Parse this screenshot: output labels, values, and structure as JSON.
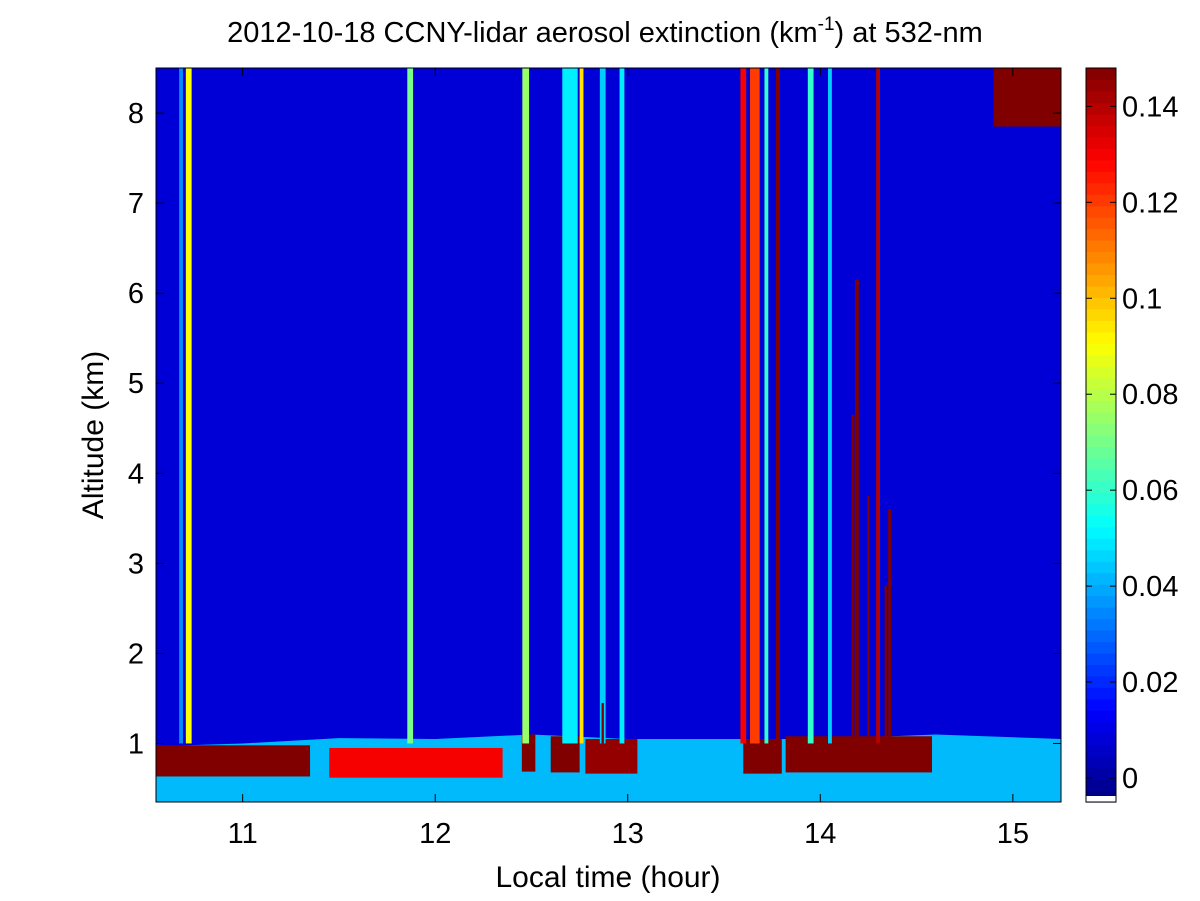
{
  "chart_data": {
    "type": "heatmap",
    "title": {
      "prefix": "2012-10-18 CCNY-lidar aerosol extinction (km",
      "superscript": "-1",
      "suffix": ") at 532-nm"
    },
    "xlabel": "Local time (hour)",
    "ylabel": "Altitude (km)",
    "xlim": [
      10.55,
      15.25
    ],
    "ylim": [
      0.35,
      8.5
    ],
    "x_ticks": [
      11,
      12,
      13,
      14,
      15
    ],
    "y_ticks": [
      1,
      2,
      3,
      4,
      5,
      6,
      7,
      8
    ],
    "colorbar": {
      "colormap": "jet",
      "range": [
        -0.005,
        0.148
      ],
      "ticks": [
        0,
        0.02,
        0.04,
        0.06,
        0.08,
        0.1,
        0.12,
        0.14
      ],
      "tick_labels": [
        "0",
        "0.02",
        "0.04",
        "0.06",
        "0.08",
        "0.1",
        "0.12",
        "0.14"
      ]
    },
    "background_extinction": 0.008,
    "boundary_layer": {
      "top_km_by_time": [
        [
          10.55,
          0.97
        ],
        [
          11.0,
          1.0
        ],
        [
          11.5,
          1.06
        ],
        [
          12.0,
          1.05
        ],
        [
          12.5,
          1.1
        ],
        [
          13.0,
          1.05
        ],
        [
          13.5,
          1.05
        ],
        [
          14.0,
          1.05
        ],
        [
          14.6,
          1.1
        ],
        [
          15.25,
          1.05
        ]
      ],
      "dense_segments": [
        {
          "start": 10.55,
          "end": 11.35,
          "top_km": 0.98,
          "value": 0.148
        },
        {
          "start": 11.45,
          "end": 12.35,
          "top_km": 0.95,
          "value": 0.13
        },
        {
          "start": 12.45,
          "end": 12.52,
          "top_km": 1.1,
          "value": 0.148
        },
        {
          "start": 12.6,
          "end": 12.75,
          "top_km": 1.08,
          "value": 0.148
        },
        {
          "start": 12.78,
          "end": 13.05,
          "top_km": 1.05,
          "value": 0.145
        },
        {
          "start": 13.6,
          "end": 13.8,
          "top_km": 1.05,
          "value": 0.148
        },
        {
          "start": 13.82,
          "end": 14.58,
          "top_km": 1.08,
          "value": 0.148
        }
      ]
    },
    "vertical_features": [
      {
        "time": 10.72,
        "width": 0.03,
        "top_km": 8.5,
        "value": 0.09
      },
      {
        "time": 10.68,
        "width": 0.02,
        "top_km": 8.5,
        "value": 0.035
      },
      {
        "time": 11.87,
        "width": 0.03,
        "top_km": 8.5,
        "value": 0.07
      },
      {
        "time": 12.47,
        "width": 0.035,
        "top_km": 8.5,
        "value": 0.075
      },
      {
        "time": 12.7,
        "width": 0.08,
        "top_km": 8.5,
        "value": 0.05
      },
      {
        "time": 12.76,
        "width": 0.02,
        "top_km": 8.5,
        "value": 0.095
      },
      {
        "time": 12.87,
        "width": 0.03,
        "top_km": 8.5,
        "value": 0.045
      },
      {
        "time": 12.97,
        "width": 0.025,
        "top_km": 8.5,
        "value": 0.05
      },
      {
        "time": 13.6,
        "width": 0.03,
        "top_km": 8.5,
        "value": 0.13
      },
      {
        "time": 13.66,
        "width": 0.05,
        "top_km": 8.5,
        "value": 0.12
      },
      {
        "time": 13.72,
        "width": 0.02,
        "top_km": 8.5,
        "value": 0.06
      },
      {
        "time": 13.78,
        "width": 0.02,
        "top_km": 8.5,
        "value": 0.148
      },
      {
        "time": 13.95,
        "width": 0.03,
        "top_km": 8.5,
        "value": 0.06
      },
      {
        "time": 14.05,
        "width": 0.02,
        "top_km": 8.5,
        "value": 0.045
      },
      {
        "time": 14.19,
        "width": 0.02,
        "top_km": 6.15,
        "value": 0.148
      },
      {
        "time": 14.17,
        "width": 0.015,
        "top_km": 4.65,
        "value": 0.148
      },
      {
        "time": 14.25,
        "width": 0.012,
        "top_km": 3.75,
        "value": 0.148
      },
      {
        "time": 14.3,
        "width": 0.02,
        "top_km": 8.5,
        "value": 0.14
      },
      {
        "time": 14.36,
        "width": 0.015,
        "top_km": 3.6,
        "value": 0.148
      },
      {
        "time": 14.34,
        "width": 0.012,
        "top_km": 2.75,
        "value": 0.148
      },
      {
        "time": 12.87,
        "width": 0.012,
        "top_km": 1.45,
        "value": 0.148
      }
    ],
    "upper_cloud": {
      "start": 14.9,
      "end": 15.25,
      "bottom_km": 7.85,
      "top_km": 8.5,
      "value": 0.148
    }
  }
}
